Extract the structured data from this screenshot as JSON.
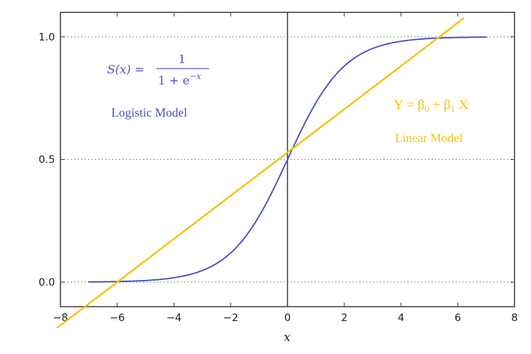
{
  "chart_data": {
    "type": "line",
    "xlabel": "x",
    "ylabel": "",
    "xlim": [
      -8,
      8
    ],
    "ylim": [
      -0.1,
      1.1
    ],
    "x_ticks": [
      -8,
      -6,
      -4,
      -2,
      0,
      2,
      4,
      6,
      8
    ],
    "x_tick_labels": [
      "−8",
      "−6",
      "−4",
      "−2",
      "0",
      "2",
      "4",
      "6",
      "8"
    ],
    "y_ticks": [
      0.0,
      0.5,
      1.0
    ],
    "y_tick_labels": [
      "0.0",
      "0.5",
      "1.0"
    ],
    "grid": "horizontal dotted at y ticks",
    "zero_line": "vertical at x = 0",
    "series": [
      {
        "name": "Logistic Model",
        "color": "#4c52c2",
        "function": "S(x) = 1/(1+e^(-x))",
        "x": [
          -7,
          -6,
          -5,
          -4,
          -3,
          -2,
          -1,
          0,
          1,
          2,
          3,
          4,
          5,
          6,
          7
        ],
        "y": [
          0.0009,
          0.0025,
          0.0067,
          0.018,
          0.047,
          0.119,
          0.269,
          0.5,
          0.731,
          0.881,
          0.953,
          0.982,
          0.993,
          0.9975,
          0.9991
        ]
      },
      {
        "name": "Linear Model",
        "color": "#f1c40f",
        "x": [
          -8.1,
          6.2
        ],
        "y": [
          -0.185,
          1.075
        ]
      }
    ],
    "annotations": {
      "logistic_formula_lhs": "S(x) =",
      "logistic_formula_numerator": "1",
      "logistic_formula_denominator": "1 + e",
      "logistic_formula_exponent": "−x",
      "logistic_label": "Logistic Model",
      "linear_formula_y": "Y = β",
      "linear_formula_sub0": "0",
      "linear_formula_mid": " + β",
      "linear_formula_sub1": "1",
      "linear_formula_x": " X",
      "linear_label": "Linear Model"
    }
  }
}
